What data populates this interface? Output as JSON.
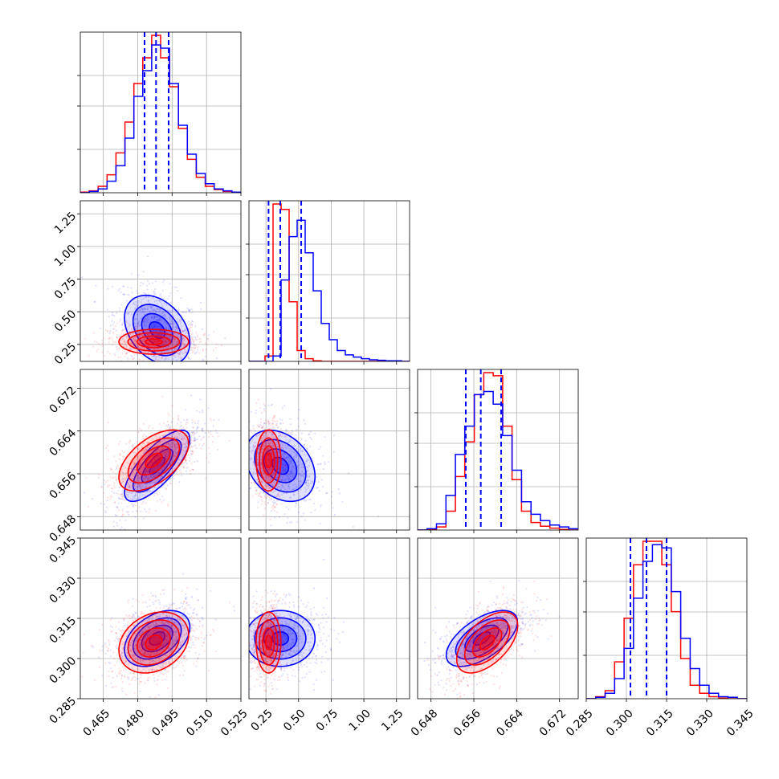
{
  "chart_data": {
    "type": "corner",
    "title": "",
    "grid": true,
    "parameters": [
      {
        "range": [
          0.455,
          0.525
        ],
        "ticks": [
          "0.465",
          "0.480",
          "0.495",
          "0.510",
          "0.525"
        ],
        "tick_values": [
          0.465,
          0.48,
          0.495,
          0.51,
          0.525
        ]
      },
      {
        "range": [
          0.12,
          1.35
        ],
        "ticks": [
          "0.25",
          "0.50",
          "0.75",
          "1.00",
          "1.25"
        ],
        "tick_values": [
          0.25,
          0.5,
          0.75,
          1.0,
          1.25
        ]
      },
      {
        "range": [
          0.6455,
          0.6755
        ],
        "ticks": [
          "0.648",
          "0.656",
          "0.664",
          "0.672"
        ],
        "tick_values": [
          0.648,
          0.656,
          0.664,
          0.672
        ]
      },
      {
        "range": [
          0.285,
          0.345
        ],
        "ticks": [
          "0.285",
          "0.300",
          "0.315",
          "0.330",
          "0.345"
        ],
        "tick_values": [
          0.285,
          0.3,
          0.315,
          0.33,
          0.345
        ]
      }
    ],
    "y_ticks": {
      "1": [
        "0.25",
        "0.50",
        "0.75",
        "1.00",
        "1.25"
      ],
      "2": [
        "0.648",
        "0.656",
        "0.664",
        "0.672"
      ],
      "3": [
        "0.285",
        "0.300",
        "0.315",
        "0.330",
        "0.345"
      ]
    },
    "series": [
      {
        "color": "#0000ff",
        "means": [
          0.4885,
          0.36,
          0.6575,
          0.3075
        ],
        "sigmas": [
          0.0075,
          0.14,
          0.0035,
          0.0055
        ],
        "correlations": {
          "0-1": -0.35,
          "0-2": 0.75,
          "0-3": 0.4,
          "1-2": -0.3,
          "1-3": 0.0,
          "2-3": 0.6
        },
        "quantiles": [
          [
            0.483,
            0.488,
            0.4935
          ],
          [
            0.27,
            0.36,
            0.52
          ],
          [
            0.6545,
            0.6573,
            0.6611
          ],
          [
            0.3015,
            0.3075,
            0.315
          ]
        ],
        "hist_counts": [
          [
            0,
            2,
            6,
            18,
            42,
            85,
            150,
            190,
            230,
            225,
            170,
            105,
            60,
            30,
            14,
            6,
            3,
            1
          ],
          [
            0,
            0,
            0,
            10,
            150,
            230,
            260,
            200,
            130,
            70,
            40,
            20,
            12,
            8,
            5,
            3,
            2,
            1,
            1,
            0
          ],
          [
            0,
            2,
            10,
            55,
            120,
            165,
            215,
            220,
            200,
            150,
            95,
            45,
            25,
            15,
            8,
            5,
            2
          ],
          [
            0,
            2,
            8,
            30,
            75,
            150,
            205,
            230,
            225,
            160,
            90,
            45,
            20,
            8,
            3,
            2,
            0
          ]
        ]
      },
      {
        "color": "#ff0000",
        "means": [
          0.487,
          0.27,
          0.6585,
          0.306
        ],
        "sigmas": [
          0.008,
          0.05,
          0.003,
          0.006
        ],
        "correlations": {
          "0-1": 0.0,
          "0-2": 0.55,
          "0-3": 0.25,
          "1-2": 0.0,
          "1-3": 0.0,
          "2-3": 0.55
        },
        "hist_counts": [
          [
            1,
            3,
            10,
            28,
            62,
            110,
            170,
            210,
            245,
            210,
            165,
            100,
            52,
            24,
            10,
            5,
            2,
            1
          ],
          [
            0,
            0,
            10,
            290,
            280,
            110,
            20,
            5,
            1,
            0,
            0,
            0,
            0,
            0,
            0,
            0,
            0,
            0,
            0,
            0
          ],
          [
            0,
            1,
            5,
            30,
            85,
            140,
            215,
            250,
            245,
            165,
            80,
            30,
            12,
            6,
            3,
            1,
            0
          ],
          [
            0,
            3,
            12,
            55,
            120,
            200,
            235,
            235,
            200,
            130,
            60,
            20,
            8,
            3,
            1,
            0,
            0
          ]
        ]
      }
    ]
  }
}
